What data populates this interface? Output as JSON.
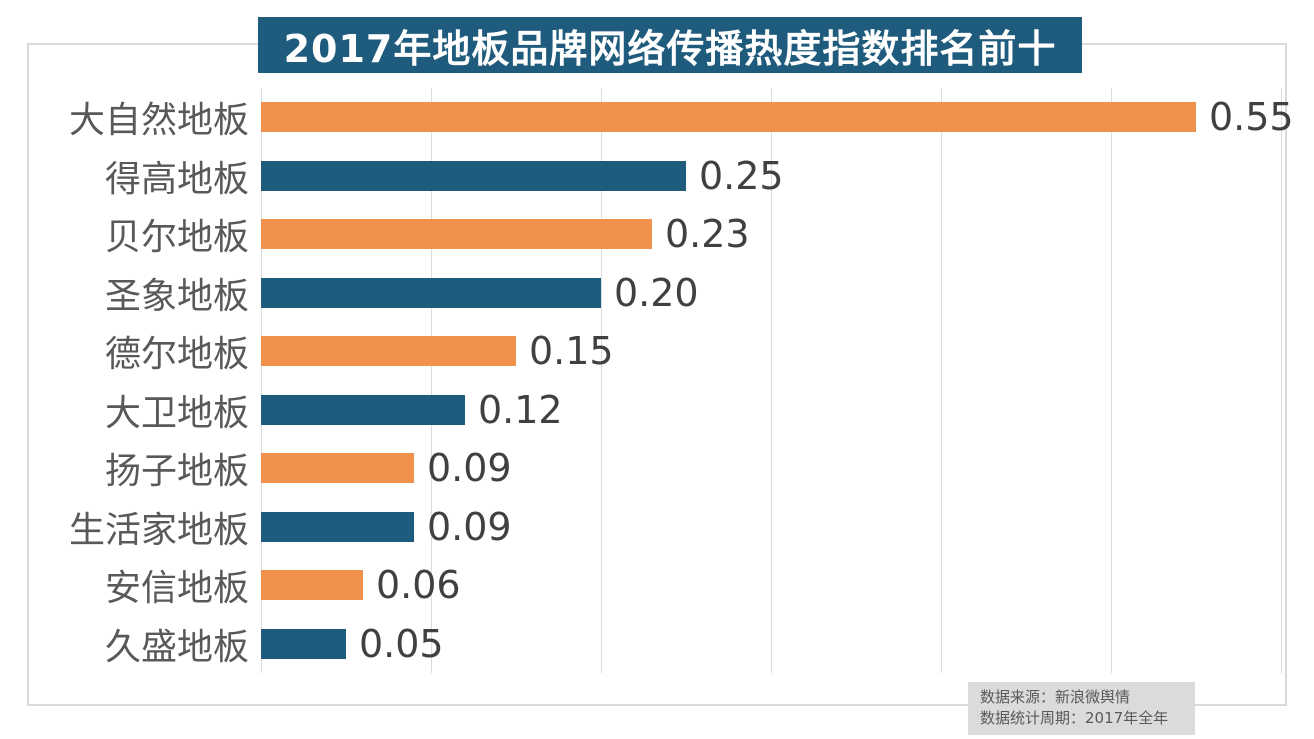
{
  "title": "2017年地板品牌网络传播热度指数排名前十",
  "chart_data": {
    "type": "bar",
    "orientation": "horizontal",
    "title": "2017年地板品牌网络传播热度指数排名前十",
    "categories": [
      "大自然地板",
      "得高地板",
      "贝尔地板",
      "圣象地板",
      "德尔地板",
      "大卫地板",
      "扬子地板",
      "生活家地板",
      "安信地板",
      "久盛地板"
    ],
    "values": [
      0.55,
      0.25,
      0.23,
      0.2,
      0.15,
      0.12,
      0.09,
      0.09,
      0.06,
      0.05
    ],
    "value_labels": [
      "0.55",
      "0.25",
      "0.23",
      "0.20",
      "0.15",
      "0.12",
      "0.09",
      "0.09",
      "0.06",
      "0.05"
    ],
    "xlabel": "",
    "ylabel": "",
    "xlim": [
      0,
      0.6
    ],
    "grid_interval": 0.1,
    "grid": true,
    "legend": false,
    "bar_colors_alternating": [
      "#F0914E",
      "#1F5B7C"
    ]
  },
  "colors": {
    "orange_bar": "#F0914E",
    "teal_bar": "#1F5B7C",
    "banner_bg": "#1F5B7C",
    "banner_text": "#FFFFFF",
    "gridline": "#DCDCDC",
    "frame_border": "#D9D9D9",
    "category_text": "#595959",
    "value_text": "#404040",
    "footer_bg": "#DBDBDB",
    "footer_text": "#595959"
  },
  "footer": {
    "line1": "数据来源：新浪微舆情",
    "line2": "数据统计周期：2017年全年"
  }
}
